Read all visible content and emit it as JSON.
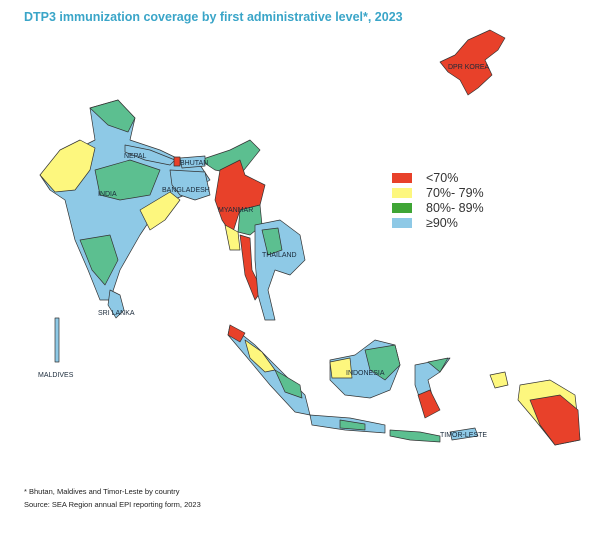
{
  "title": "DTP3 immunization coverage by first administrative level*, 2023",
  "legend": [
    {
      "label": "<70%",
      "color": "#e8412a"
    },
    {
      "label": "70%- 79%",
      "color": "#fdf77e"
    },
    {
      "label": "80%- 89%",
      "color": "#3fa535"
    },
    {
      "label": "≥90%",
      "color": "#8ec9e6"
    }
  ],
  "map_fill": {
    "red": "#e8412a",
    "yellow": "#fdf77e",
    "green": "#5cbf90",
    "blue": "#8ec9e6"
  },
  "countries": {
    "dpr_korea": "DPR KOREA",
    "nepal": "NEPAL",
    "bhutan": "BHUTAN",
    "india": "INDIA",
    "bangladesh": "BANGLADESH",
    "myanmar": "MYANMAR",
    "thailand": "THAILAND",
    "sri_lanka": "SRI LANKA",
    "maldives": "MALDIVES",
    "indonesia": "INDONESIA",
    "timor_leste": "TIMOR-LESTE"
  },
  "footnotes": {
    "note": "* Bhutan, Maldives and Timor-Leste by country",
    "source": "Source: SEA Region annual EPI reporting form, 2023"
  }
}
